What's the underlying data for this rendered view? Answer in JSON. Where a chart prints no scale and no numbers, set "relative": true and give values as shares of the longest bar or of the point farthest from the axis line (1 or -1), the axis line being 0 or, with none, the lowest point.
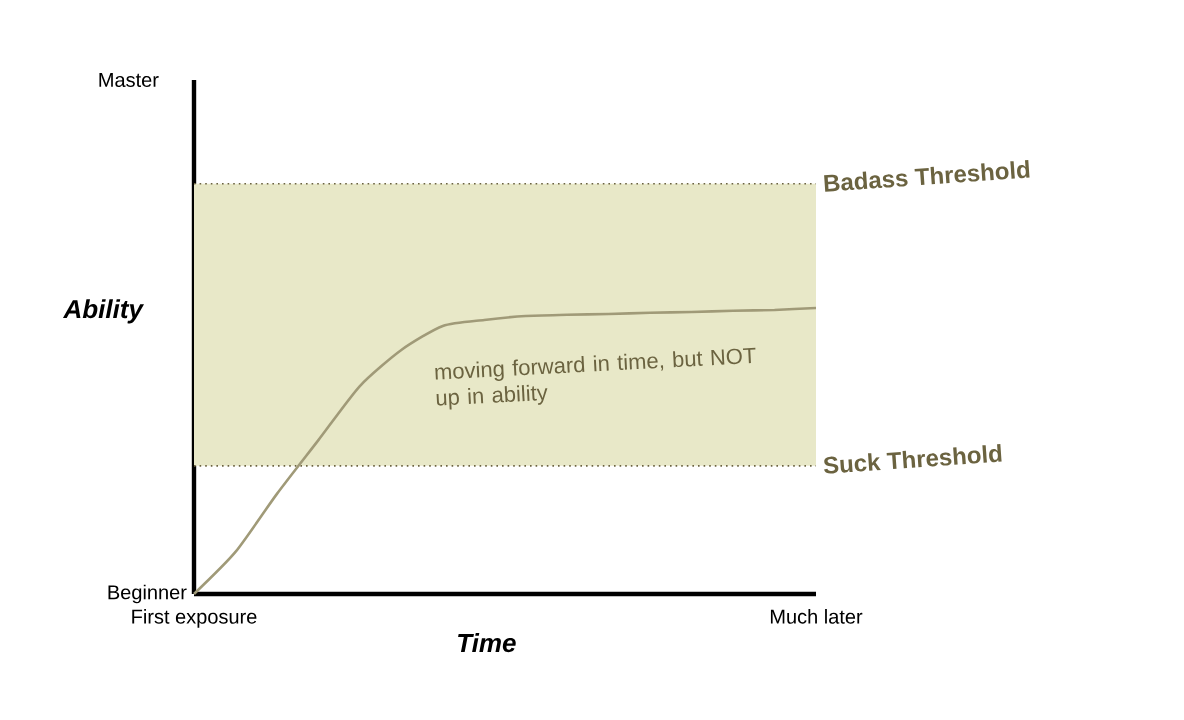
{
  "chart_data": {
    "type": "line",
    "relative": true,
    "xlabel": "Time",
    "ylabel": "Ability",
    "categories": [
      "First exposure",
      null,
      null,
      null,
      null,
      null,
      null,
      null,
      null,
      null,
      null,
      null,
      null,
      null,
      null,
      "Much later"
    ],
    "series": [
      {
        "color": "#a09a78",
        "values": [
          0,
          0.147,
          0.35,
          0.538,
          0.727,
          0.853,
          0.937,
          0.958,
          0.972,
          0.976,
          0.979,
          0.983,
          0.986,
          0.99,
          0.993,
          1
        ]
      }
    ],
    "bands": [
      {
        "axis": "y",
        "from": 0.448,
        "to": 1.434,
        "color": "#e8e8c8"
      }
    ],
    "ref_lines": [
      {
        "axis": "y",
        "value": 1.434,
        "label": "Badass Threshold",
        "color": "#6b6340",
        "line_style": "dotted"
      },
      {
        "axis": "y",
        "value": 0.448,
        "label": "Suck Threshold",
        "color": "#6b6340",
        "line_style": "dotted"
      }
    ],
    "annotations": [
      "moving forward in time, but NOT up in ability",
      "Beginner",
      "Master"
    ],
    "marker": "none",
    "line_style": "solid",
    "grid": false
  }
}
